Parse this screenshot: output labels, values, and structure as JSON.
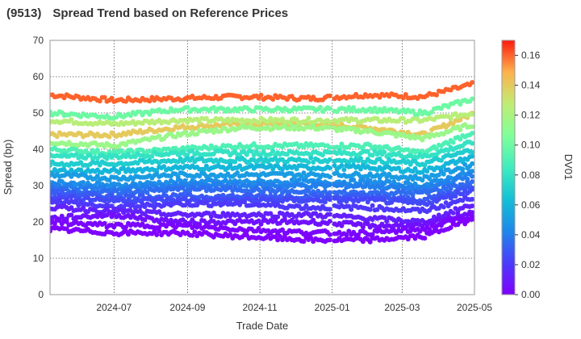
{
  "header": {
    "code": "(9513)",
    "title": "Spread Trend based on Reference Prices"
  },
  "chart_data": {
    "type": "scatter",
    "title": "Spread Trend based on Reference Prices",
    "xlabel": "Trade Date",
    "ylabel": "Spread (bp)",
    "colorbar_label": "DV01",
    "xlim": [
      "2024-05-08",
      "2025-05-01"
    ],
    "ylim": [
      0,
      70
    ],
    "x_ticks": [
      "2024-07",
      "2024-09",
      "2024-11",
      "2025-01",
      "2025-03",
      "2025-05"
    ],
    "y_ticks": [
      0,
      10,
      20,
      30,
      40,
      50,
      60,
      70
    ],
    "colorbar_ticks": [
      "0.00",
      "0.02",
      "0.04",
      "0.06",
      "0.08",
      "0.10",
      "0.12",
      "0.14",
      "0.16"
    ],
    "colorbar_range": [
      0,
      0.17
    ],
    "colormap": "rainbow",
    "grid": true,
    "gap_dates": [
      "2024-12-31",
      "2025-01-01"
    ],
    "series": [
      {
        "dv01": 0.16,
        "spread": [
          [
            0,
            55
          ],
          [
            0.15,
            53.5
          ],
          [
            0.3,
            54
          ],
          [
            0.45,
            54.5
          ],
          [
            0.62,
            54
          ],
          [
            0.75,
            55
          ],
          [
            0.88,
            54.5
          ],
          [
            1,
            58
          ]
        ]
      },
      {
        "dv01": 0.14,
        "spread": [
          [
            0,
            44
          ],
          [
            0.15,
            44
          ],
          [
            0.3,
            46
          ],
          [
            0.45,
            47
          ],
          [
            0.62,
            47
          ],
          [
            0.75,
            46
          ],
          [
            0.88,
            44
          ],
          [
            1,
            50
          ]
        ]
      },
      {
        "dv01": 0.125,
        "spread": [
          [
            0,
            48
          ],
          [
            0.15,
            47
          ],
          [
            0.3,
            48
          ],
          [
            0.45,
            48
          ],
          [
            0.62,
            48
          ],
          [
            0.75,
            48
          ],
          [
            0.88,
            48
          ],
          [
            1,
            50
          ]
        ]
      },
      {
        "dv01": 0.115,
        "spread": [
          [
            0,
            42
          ],
          [
            0.15,
            41
          ],
          [
            0.3,
            44
          ],
          [
            0.45,
            46
          ],
          [
            0.62,
            46
          ],
          [
            0.75,
            45
          ],
          [
            0.88,
            43
          ],
          [
            1,
            47
          ]
        ]
      },
      {
        "dv01": 0.1,
        "spread": [
          [
            0,
            50
          ],
          [
            0.15,
            49
          ],
          [
            0.3,
            51
          ],
          [
            0.45,
            51
          ],
          [
            0.62,
            51
          ],
          [
            0.75,
            51
          ],
          [
            0.88,
            50
          ],
          [
            1,
            54
          ]
        ]
      },
      {
        "dv01": 0.09,
        "spread": [
          [
            0,
            40
          ],
          [
            0.15,
            39
          ],
          [
            0.3,
            40
          ],
          [
            0.45,
            41
          ],
          [
            0.62,
            41
          ],
          [
            0.75,
            41
          ],
          [
            0.88,
            39
          ],
          [
            1,
            45
          ]
        ]
      },
      {
        "dv01": 0.08,
        "spread": [
          [
            0,
            38
          ],
          [
            0.15,
            38
          ],
          [
            0.3,
            39
          ],
          [
            0.45,
            39
          ],
          [
            0.62,
            39
          ],
          [
            0.75,
            39
          ],
          [
            0.88,
            38
          ],
          [
            1,
            42
          ]
        ]
      },
      {
        "dv01": 0.07,
        "spread": [
          [
            0,
            36
          ],
          [
            0.15,
            36
          ],
          [
            0.3,
            37
          ],
          [
            0.45,
            37
          ],
          [
            0.62,
            37
          ],
          [
            0.75,
            37
          ],
          [
            0.88,
            36
          ],
          [
            1,
            40
          ]
        ]
      },
      {
        "dv01": 0.06,
        "spread": [
          [
            0,
            34
          ],
          [
            0.15,
            34
          ],
          [
            0.3,
            35
          ],
          [
            0.45,
            35
          ],
          [
            0.62,
            35
          ],
          [
            0.75,
            35
          ],
          [
            0.88,
            34
          ],
          [
            1,
            38
          ]
        ]
      },
      {
        "dv01": 0.05,
        "spread": [
          [
            0,
            33
          ],
          [
            0.15,
            32
          ],
          [
            0.3,
            33
          ],
          [
            0.45,
            33
          ],
          [
            0.62,
            33
          ],
          [
            0.75,
            33
          ],
          [
            0.88,
            32
          ],
          [
            1,
            36
          ]
        ]
      },
      {
        "dv01": 0.045,
        "spread": [
          [
            0,
            31
          ],
          [
            0.15,
            30
          ],
          [
            0.3,
            31
          ],
          [
            0.45,
            31
          ],
          [
            0.62,
            31
          ],
          [
            0.75,
            31
          ],
          [
            0.88,
            30
          ],
          [
            1,
            34
          ]
        ]
      },
      {
        "dv01": 0.04,
        "spread": [
          [
            0,
            30
          ],
          [
            0.15,
            29
          ],
          [
            0.3,
            30
          ],
          [
            0.45,
            30
          ],
          [
            0.62,
            30
          ],
          [
            0.75,
            30
          ],
          [
            0.88,
            29
          ],
          [
            1,
            33
          ]
        ]
      },
      {
        "dv01": 0.035,
        "spread": [
          [
            0,
            29
          ],
          [
            0.15,
            28
          ],
          [
            0.3,
            29
          ],
          [
            0.45,
            29
          ],
          [
            0.62,
            28
          ],
          [
            0.75,
            28
          ],
          [
            0.88,
            28
          ],
          [
            1,
            31
          ]
        ]
      },
      {
        "dv01": 0.03,
        "spread": [
          [
            0,
            28
          ],
          [
            0.15,
            27
          ],
          [
            0.3,
            27
          ],
          [
            0.45,
            27
          ],
          [
            0.62,
            27
          ],
          [
            0.75,
            27
          ],
          [
            0.88,
            26
          ],
          [
            1,
            30
          ]
        ]
      },
      {
        "dv01": 0.025,
        "spread": [
          [
            0,
            27
          ],
          [
            0.15,
            26
          ],
          [
            0.3,
            26
          ],
          [
            0.45,
            26
          ],
          [
            0.62,
            26
          ],
          [
            0.75,
            26
          ],
          [
            0.88,
            25
          ],
          [
            1,
            29
          ]
        ]
      },
      {
        "dv01": 0.02,
        "spread": [
          [
            0,
            26
          ],
          [
            0.15,
            24
          ],
          [
            0.3,
            25
          ],
          [
            0.45,
            25
          ],
          [
            0.62,
            24
          ],
          [
            0.75,
            24
          ],
          [
            0.88,
            23
          ],
          [
            1,
            27
          ]
        ]
      },
      {
        "dv01": 0.012,
        "spread": [
          [
            0,
            24
          ],
          [
            0.15,
            23
          ],
          [
            0.3,
            22
          ],
          [
            0.45,
            22
          ],
          [
            0.62,
            22
          ],
          [
            0.75,
            21
          ],
          [
            0.88,
            20
          ],
          [
            1,
            25
          ]
        ]
      },
      {
        "dv01": 0.006,
        "spread": [
          [
            0,
            21
          ],
          [
            0.15,
            22
          ],
          [
            0.3,
            20
          ],
          [
            0.45,
            20
          ],
          [
            0.62,
            20
          ],
          [
            0.75,
            19
          ],
          [
            0.88,
            19
          ],
          [
            1,
            23
          ]
        ]
      },
      {
        "dv01": 0.002,
        "spread": [
          [
            0,
            20
          ],
          [
            0.15,
            19
          ],
          [
            0.3,
            19
          ],
          [
            0.45,
            18
          ],
          [
            0.62,
            17
          ],
          [
            0.75,
            17
          ],
          [
            0.88,
            18
          ],
          [
            1,
            22
          ]
        ]
      },
      {
        "dv01": 0.0,
        "spread": [
          [
            0,
            18
          ],
          [
            0.15,
            17
          ],
          [
            0.3,
            17
          ],
          [
            0.45,
            16
          ],
          [
            0.62,
            15
          ],
          [
            0.75,
            15
          ],
          [
            0.88,
            16
          ],
          [
            1,
            21
          ]
        ]
      }
    ]
  }
}
